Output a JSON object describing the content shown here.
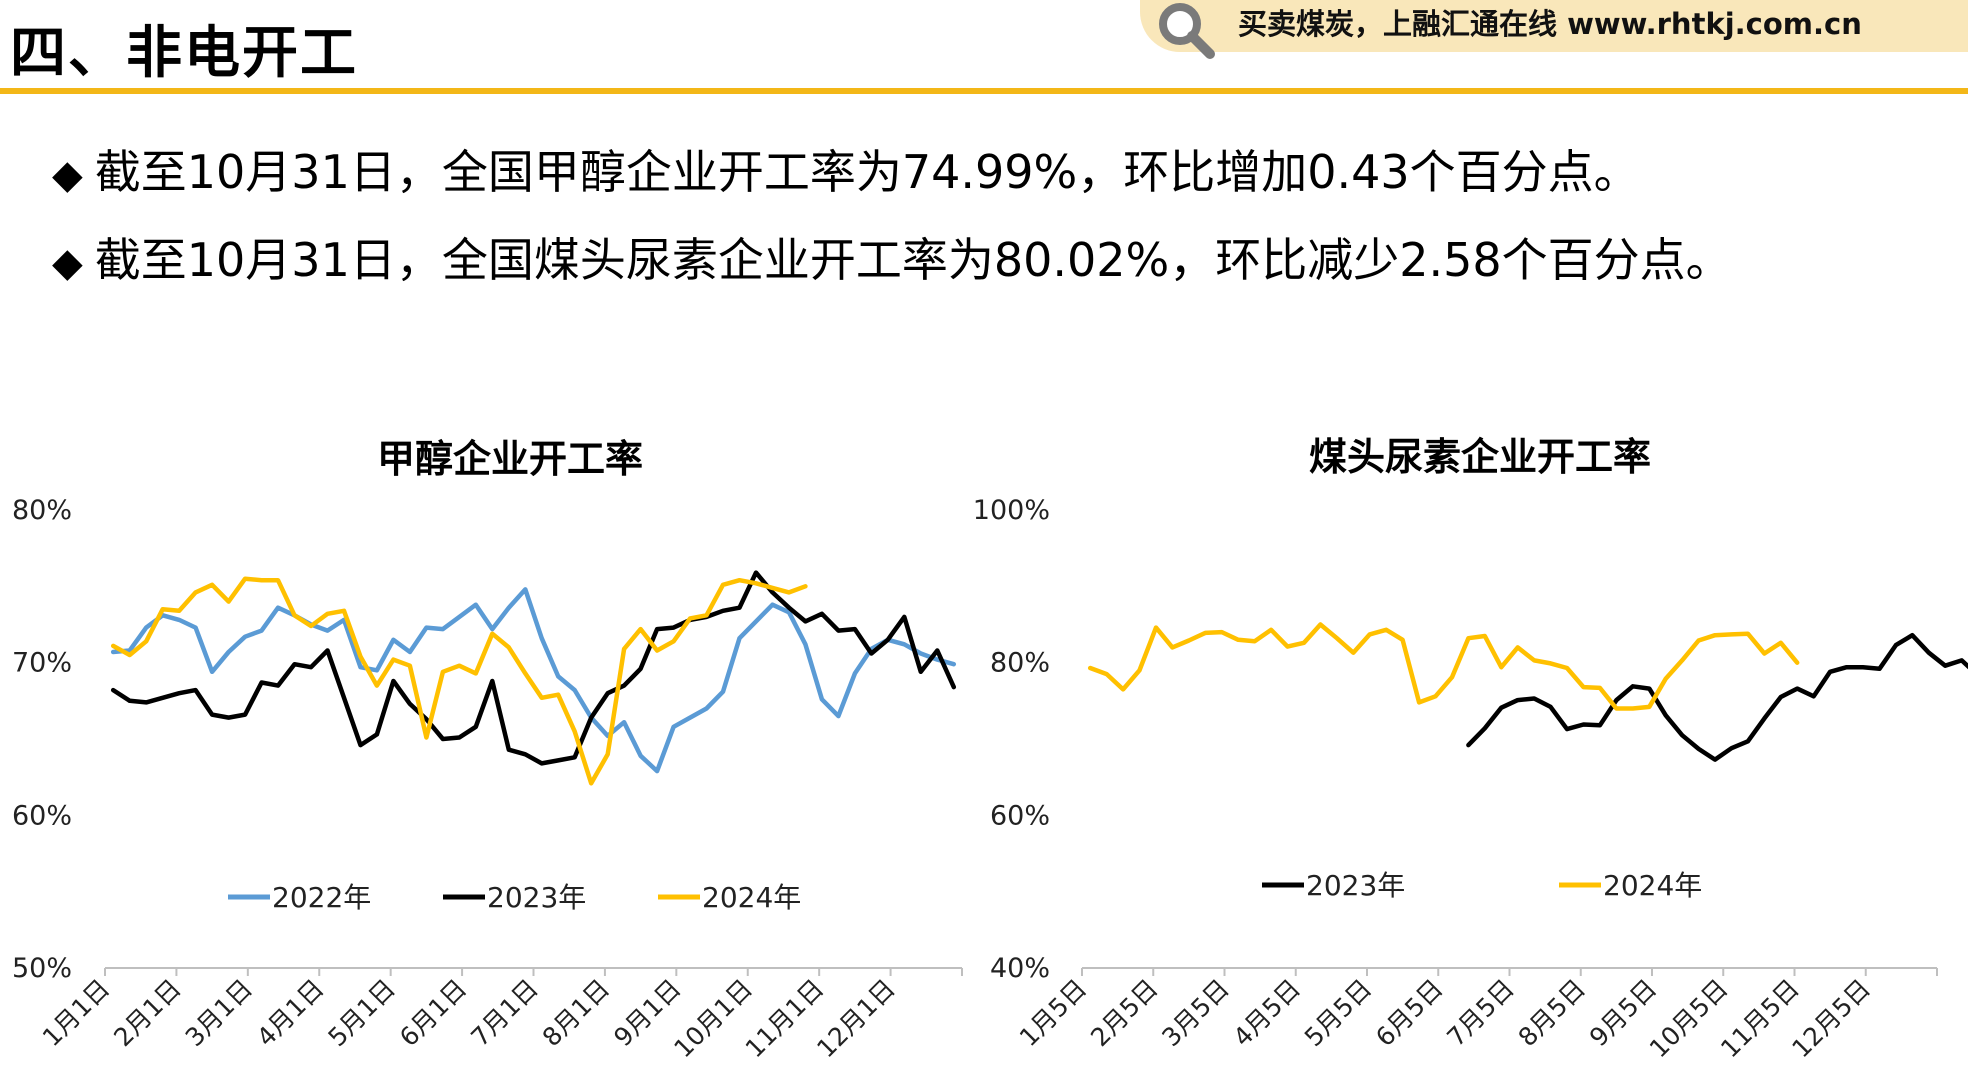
{
  "header": {
    "title": "四、非电开工",
    "banner_text": "买卖煤炭，上融汇通在线 www.rhtkj.com.cn",
    "banner_icon": "search-icon",
    "accent_color": "#f3b718"
  },
  "bullets": [
    "截至10月31日，全国甲醇企业开工率为74.99%，环比增加0.43个百分点。",
    "截至10月31日，全国煤头尿素企业开工率为80.02%，环比减少2.58个百分点。"
  ],
  "chart_data": [
    {
      "type": "line",
      "title": "甲醇企业开工率",
      "ylim": [
        50,
        80
      ],
      "yticks": [
        "80%",
        "70%",
        "60%",
        "50%"
      ],
      "x_axis": [
        "1月1日",
        "2月1日",
        "3月1日",
        "4月1日",
        "5月1日",
        "6月1日",
        "7月1日",
        "8月1日",
        "9月1日",
        "10月1日",
        "11月1日",
        "12月1日"
      ],
      "grid": false,
      "legend_position": "bottom",
      "series": [
        {
          "name": "2022年",
          "color": "#5b9bd5",
          "values": [
            70.7,
            70.8,
            72.3,
            73.1,
            72.8,
            72.3,
            69.4,
            70.7,
            71.7,
            72.1,
            73.6,
            73.1,
            72.5,
            72.1,
            72.8,
            69.7,
            69.5,
            71.5,
            70.7,
            72.3,
            72.2,
            73.0,
            73.8,
            72.2,
            73.6,
            74.8,
            71.6,
            69.1,
            68.2,
            66.4,
            65.2,
            66.1,
            63.9,
            62.9,
            65.8,
            66.4,
            67.0,
            68.1,
            71.6,
            72.7,
            73.8,
            73.3,
            71.2,
            67.6,
            66.5,
            69.3,
            70.9,
            71.5,
            71.2,
            70.6,
            70.2,
            69.9
          ]
        },
        {
          "name": "2023年",
          "color": "#000000",
          "values": [
            68.2,
            67.5,
            67.4,
            67.7,
            68.0,
            68.2,
            66.6,
            66.4,
            66.6,
            68.7,
            68.5,
            69.9,
            69.7,
            70.8,
            67.7,
            64.6,
            65.3,
            68.8,
            67.3,
            66.3,
            65.0,
            65.1,
            65.8,
            68.8,
            64.3,
            64.0,
            63.4,
            63.6,
            63.8,
            66.4,
            68.0,
            68.5,
            69.6,
            72.2,
            72.3,
            72.8,
            73.0,
            73.4,
            73.6,
            75.9,
            74.6,
            73.6,
            72.7,
            73.2,
            72.1,
            72.2,
            70.6,
            71.5,
            73.0,
            69.4,
            70.8,
            68.4
          ]
        },
        {
          "name": "2024年",
          "color": "#ffc000",
          "values": [
            71.1,
            70.5,
            71.4,
            73.5,
            73.4,
            74.6,
            75.1,
            74.0,
            75.5,
            75.4,
            75.4,
            73.1,
            72.4,
            73.2,
            73.4,
            70.4,
            68.5,
            70.2,
            69.8,
            65.1,
            69.4,
            69.8,
            69.3,
            71.9,
            71.0,
            69.3,
            67.7,
            67.9,
            65.5,
            62.1,
            64.0,
            70.9,
            72.2,
            70.8,
            71.4,
            72.9,
            73.1,
            75.1,
            75.4,
            75.2,
            74.9,
            74.6,
            75.0
          ]
        }
      ]
    },
    {
      "type": "line",
      "title": "煤头尿素企业开工率",
      "ylim": [
        40,
        100
      ],
      "yticks": [
        "100%",
        "80%",
        "60%",
        "40%"
      ],
      "x_axis": [
        "1月5日",
        "2月5日",
        "3月5日",
        "4月5日",
        "5月5日",
        "6月5日",
        "7月5日",
        "8月5日",
        "9月5日",
        "10月5日",
        "11月5日",
        "12月5日"
      ],
      "grid": false,
      "legend_position": "bottom",
      "series": [
        {
          "name": "2023年",
          "color": "#000000",
          "start_index": 23,
          "values": [
            69.2,
            71.4,
            74.1,
            75.1,
            75.3,
            74.2,
            71.3,
            71.9,
            71.8,
            75.1,
            76.9,
            76.6,
            73.1,
            70.5,
            68.7,
            67.3,
            68.8,
            69.7,
            72.7,
            75.5,
            76.6,
            75.6,
            78.8,
            79.4,
            79.4,
            79.2,
            82.3,
            83.6,
            81.3,
            79.6,
            80.3,
            78.3
          ]
        },
        {
          "name": "2024年",
          "color": "#ffc000",
          "start_index": 0,
          "values": [
            79.3,
            78.5,
            76.5,
            79.0,
            84.6,
            82.0,
            82.9,
            83.9,
            84.0,
            83.0,
            82.8,
            84.3,
            82.1,
            82.6,
            85.0,
            83.2,
            81.3,
            83.7,
            84.3,
            83.0,
            74.8,
            75.6,
            78.1,
            83.2,
            83.5,
            79.4,
            82.0,
            80.3,
            79.9,
            79.3,
            76.8,
            76.7,
            74.0,
            74.0,
            74.2,
            77.9,
            80.3,
            82.9,
            83.6,
            83.7,
            83.8,
            81.2,
            82.6,
            80.0
          ]
        }
      ]
    }
  ]
}
